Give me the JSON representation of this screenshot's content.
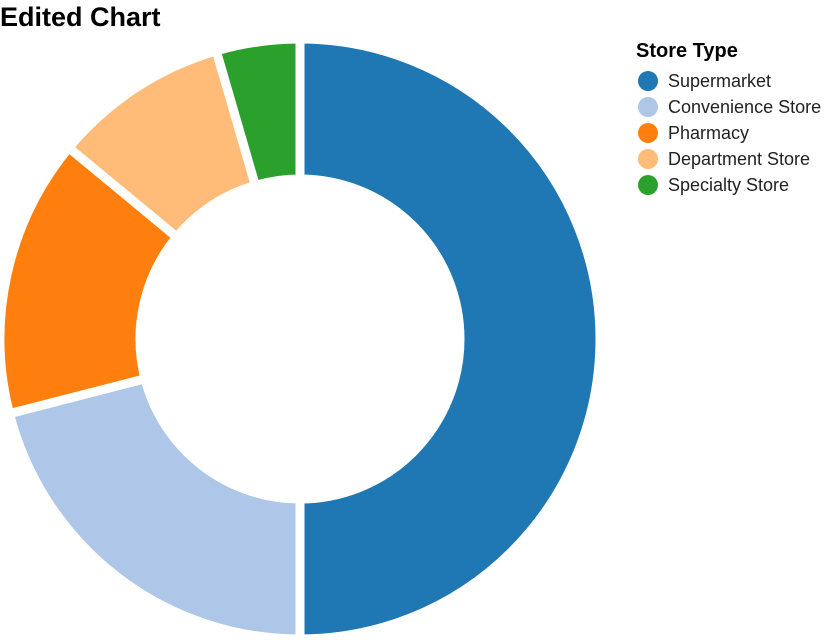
{
  "chart_data": {
    "type": "pie",
    "style": "donut",
    "title": "Edited Chart",
    "legend_title": "Store Type",
    "legend_position": "top-right",
    "categories": [
      "Supermarket",
      "Convenience Store",
      "Pharmacy",
      "Department Store",
      "Specialty Store"
    ],
    "values": [
      50,
      21,
      15,
      9.5,
      4.5
    ],
    "colors": [
      "#1f77b4",
      "#aec7e8",
      "#ff7f0e",
      "#ffbb78",
      "#2ca02c"
    ]
  }
}
